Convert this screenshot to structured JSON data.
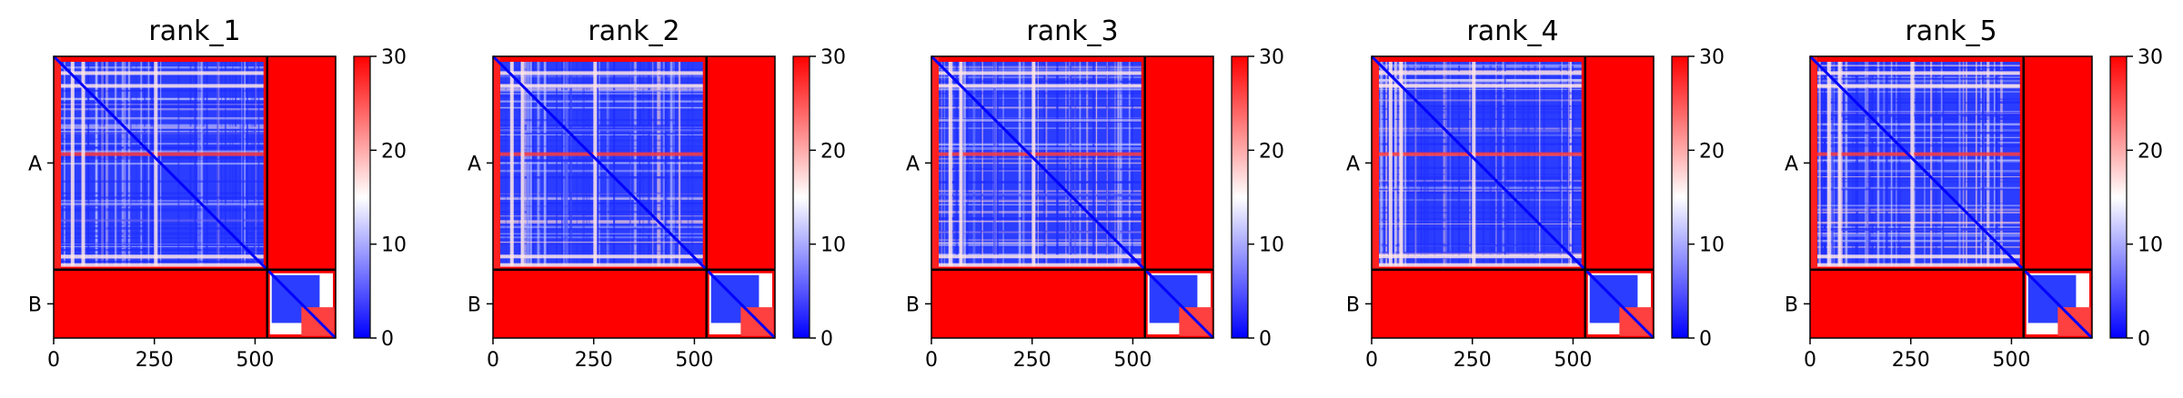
{
  "chart_data": [
    {
      "type": "heatmap",
      "title": "rank_1",
      "xticks": [
        0,
        250,
        500
      ],
      "ylabels": [
        "A",
        "B"
      ],
      "chains": [
        {
          "name": "A",
          "length": 530
        },
        {
          "name": "B",
          "length": 170
        }
      ],
      "colorbar": {
        "ticks": [
          0,
          10,
          20,
          30
        ],
        "range": [
          0,
          30
        ],
        "colormap": "bwr",
        "colors": [
          "#0000ff",
          "#ffffff",
          "#ff0000"
        ]
      }
    },
    {
      "type": "heatmap",
      "title": "rank_2",
      "xticks": [
        0,
        250,
        500
      ],
      "ylabels": [
        "A",
        "B"
      ],
      "chains": [
        {
          "name": "A",
          "length": 530
        },
        {
          "name": "B",
          "length": 170
        }
      ],
      "colorbar": {
        "ticks": [
          0,
          10,
          20,
          30
        ],
        "range": [
          0,
          30
        ],
        "colormap": "bwr",
        "colors": [
          "#0000ff",
          "#ffffff",
          "#ff0000"
        ]
      }
    },
    {
      "type": "heatmap",
      "title": "rank_3",
      "xticks": [
        0,
        250,
        500
      ],
      "ylabels": [
        "A",
        "B"
      ],
      "chains": [
        {
          "name": "A",
          "length": 530
        },
        {
          "name": "B",
          "length": 170
        }
      ],
      "colorbar": {
        "ticks": [
          0,
          10,
          20,
          30
        ],
        "range": [
          0,
          30
        ],
        "colormap": "bwr",
        "colors": [
          "#0000ff",
          "#ffffff",
          "#ff0000"
        ]
      }
    },
    {
      "type": "heatmap",
      "title": "rank_4",
      "xticks": [
        0,
        250,
        500
      ],
      "ylabels": [
        "A",
        "B"
      ],
      "chains": [
        {
          "name": "A",
          "length": 530
        },
        {
          "name": "B",
          "length": 170
        }
      ],
      "colorbar": {
        "ticks": [
          0,
          10,
          20,
          30
        ],
        "range": [
          0,
          30
        ],
        "colormap": "bwr",
        "colors": [
          "#0000ff",
          "#ffffff",
          "#ff0000"
        ]
      }
    },
    {
      "type": "heatmap",
      "title": "rank_5",
      "xticks": [
        0,
        250,
        500
      ],
      "ylabels": [
        "A",
        "B"
      ],
      "chains": [
        {
          "name": "A",
          "length": 530
        },
        {
          "name": "B",
          "length": 170
        }
      ],
      "colorbar": {
        "ticks": [
          0,
          10,
          20,
          30
        ],
        "range": [
          0,
          30
        ],
        "colormap": "bwr",
        "colors": [
          "#0000ff",
          "#ffffff",
          "#ff0000"
        ]
      }
    }
  ]
}
